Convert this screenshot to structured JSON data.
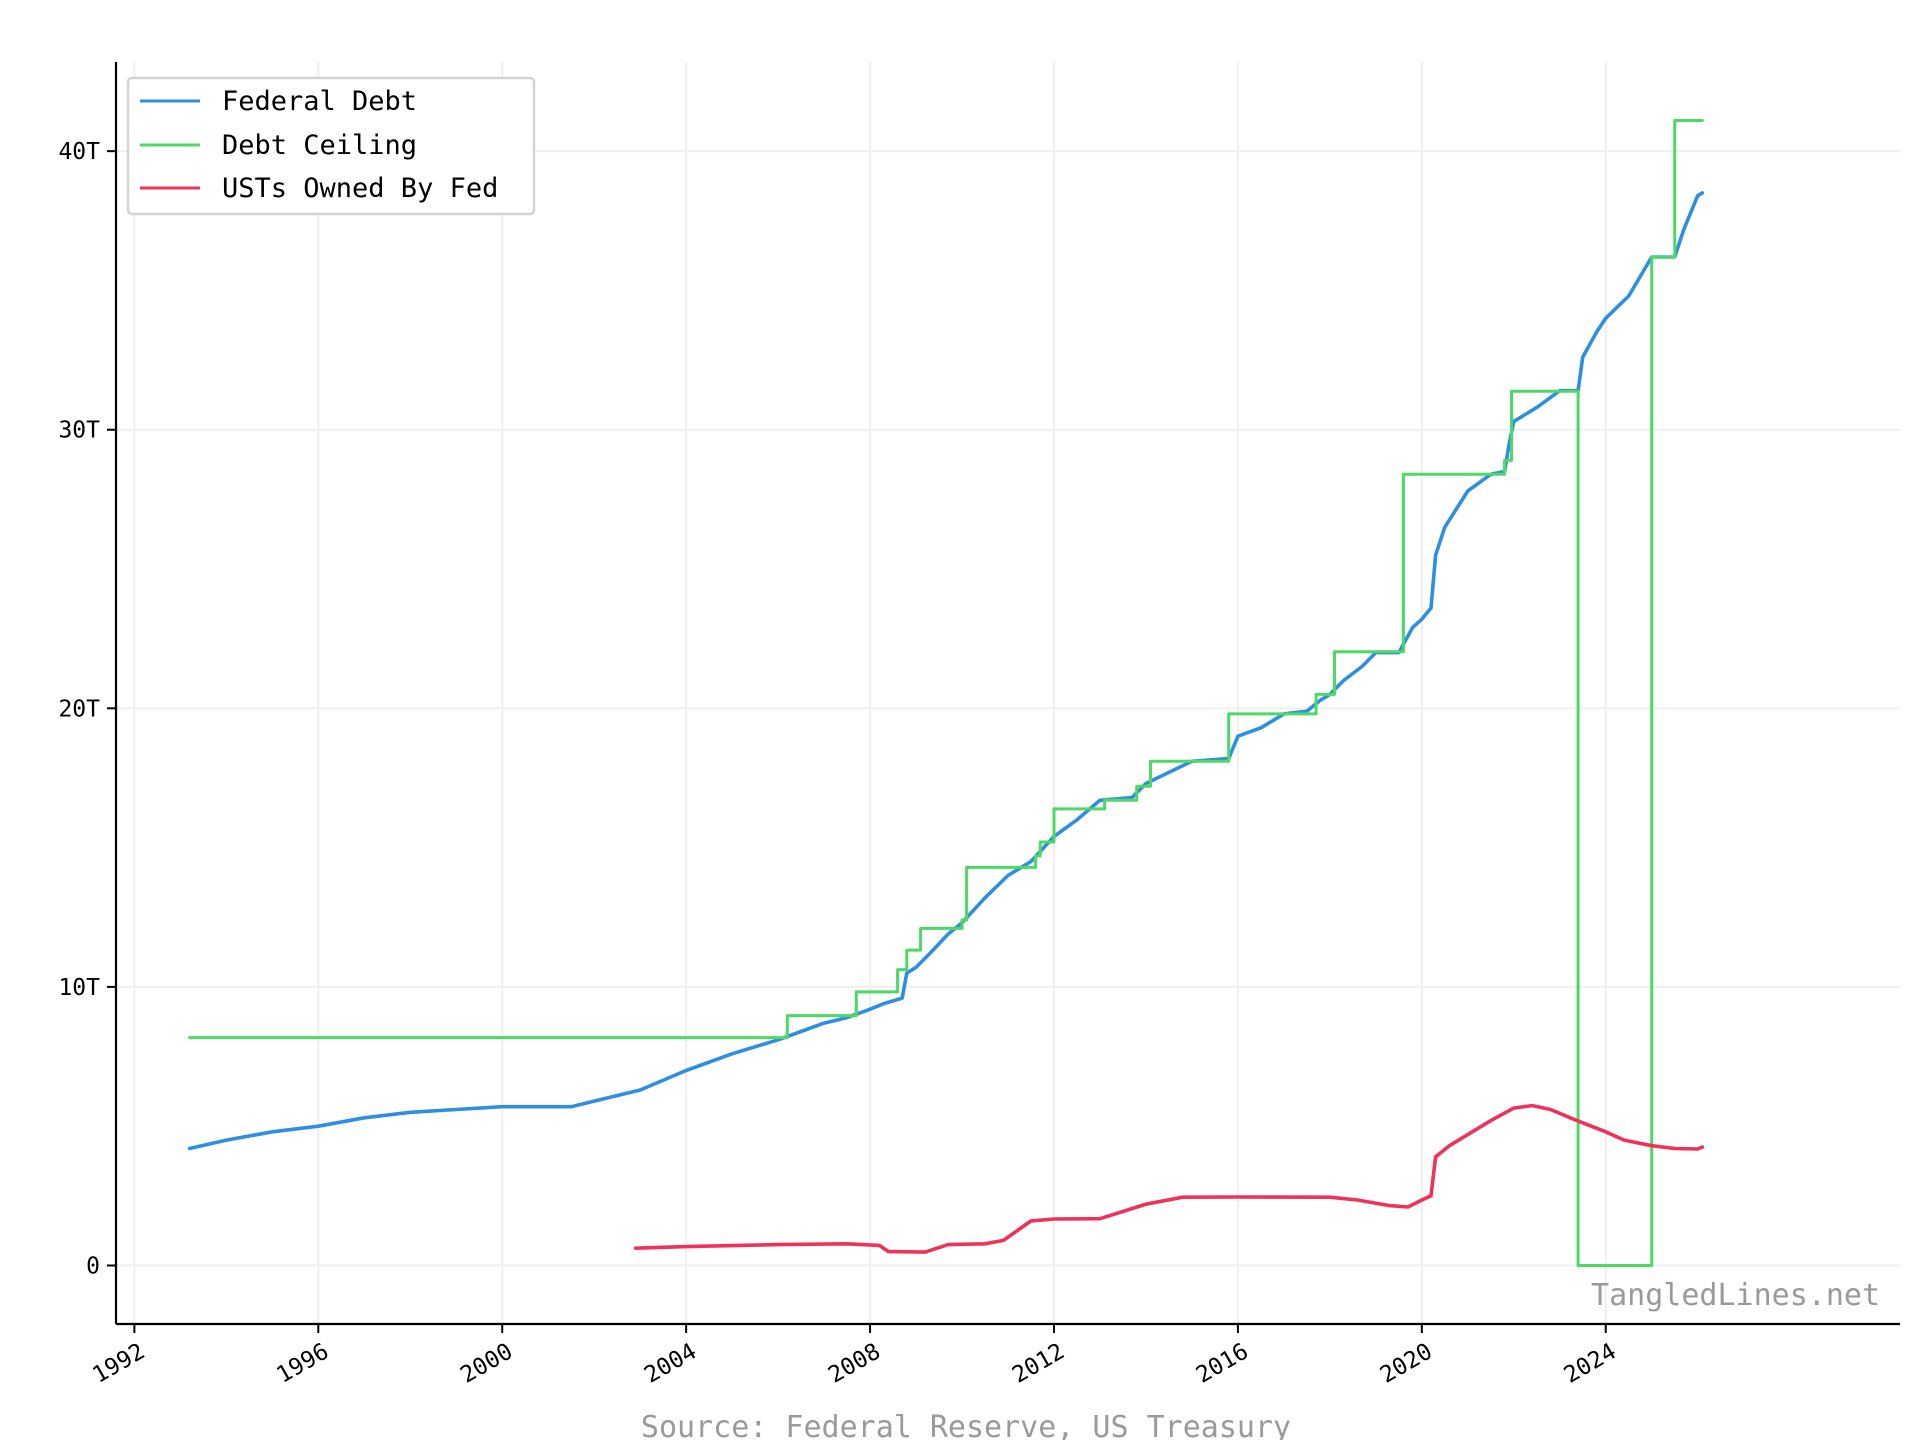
{
  "chart_data": {
    "type": "line",
    "xlim": [
      1991.6,
      2030.4
    ],
    "ylim": [
      -2.1,
      43.2
    ],
    "x_ticks": [
      1992,
      1996,
      2000,
      2004,
      2008,
      2012,
      2016,
      2020,
      2024
    ],
    "x_tick_labels": [
      "1992",
      "1996",
      "2000",
      "2004",
      "2008",
      "2012",
      "2016",
      "2020",
      "2024"
    ],
    "y_ticks": [
      0,
      10,
      20,
      30,
      40
    ],
    "y_tick_labels": [
      "0",
      "10T",
      "20T",
      "30T",
      "40T"
    ],
    "grid": true,
    "legend_position": "top-left",
    "watermark": "TangledLines.net",
    "source": "Source: Federal Reserve, US Treasury",
    "series": [
      {
        "name": "Federal Debt",
        "color": "#2e8fe0",
        "style": "line",
        "points": [
          [
            1993.2,
            4.2
          ],
          [
            1994.0,
            4.5
          ],
          [
            1995.0,
            4.8
          ],
          [
            1996.0,
            5.0
          ],
          [
            1997.0,
            5.3
          ],
          [
            1998.0,
            5.5
          ],
          [
            1999.0,
            5.6
          ],
          [
            2000.0,
            5.7
          ],
          [
            2001.0,
            5.7
          ],
          [
            2001.5,
            5.7
          ],
          [
            2002.0,
            5.9
          ],
          [
            2003.0,
            6.3
          ],
          [
            2004.0,
            7.0
          ],
          [
            2005.0,
            7.6
          ],
          [
            2006.0,
            8.1
          ],
          [
            2006.5,
            8.4
          ],
          [
            2007.0,
            8.7
          ],
          [
            2007.5,
            8.9
          ],
          [
            2008.0,
            9.2
          ],
          [
            2008.3,
            9.4
          ],
          [
            2008.7,
            9.6
          ],
          [
            2008.8,
            10.5
          ],
          [
            2009.0,
            10.7
          ],
          [
            2009.3,
            11.2
          ],
          [
            2009.7,
            11.9
          ],
          [
            2010.0,
            12.3
          ],
          [
            2010.5,
            13.2
          ],
          [
            2011.0,
            14.0
          ],
          [
            2011.5,
            14.5
          ],
          [
            2012.0,
            15.4
          ],
          [
            2012.5,
            16.0
          ],
          [
            2013.0,
            16.7
          ],
          [
            2013.7,
            16.8
          ],
          [
            2014.0,
            17.3
          ],
          [
            2014.5,
            17.7
          ],
          [
            2015.0,
            18.1
          ],
          [
            2015.8,
            18.2
          ],
          [
            2016.0,
            19.0
          ],
          [
            2016.5,
            19.3
          ],
          [
            2017.0,
            19.8
          ],
          [
            2017.5,
            19.9
          ],
          [
            2017.8,
            20.3
          ],
          [
            2018.0,
            20.5
          ],
          [
            2018.3,
            21.0
          ],
          [
            2018.7,
            21.5
          ],
          [
            2019.0,
            22.0
          ],
          [
            2019.5,
            22.0
          ],
          [
            2019.8,
            22.9
          ],
          [
            2020.0,
            23.2
          ],
          [
            2020.2,
            23.6
          ],
          [
            2020.3,
            25.5
          ],
          [
            2020.5,
            26.5
          ],
          [
            2021.0,
            27.8
          ],
          [
            2021.5,
            28.4
          ],
          [
            2021.8,
            28.5
          ],
          [
            2021.9,
            29.5
          ],
          [
            2022.0,
            30.3
          ],
          [
            2022.5,
            30.8
          ],
          [
            2023.0,
            31.4
          ],
          [
            2023.4,
            31.4
          ],
          [
            2023.5,
            32.6
          ],
          [
            2023.8,
            33.5
          ],
          [
            2024.0,
            34.0
          ],
          [
            2024.5,
            34.8
          ],
          [
            2025.0,
            36.2
          ],
          [
            2025.5,
            36.2
          ],
          [
            2025.7,
            37.2
          ],
          [
            2026.0,
            38.4
          ],
          [
            2026.1,
            38.5
          ]
        ]
      },
      {
        "name": "Debt Ceiling",
        "color": "#4cd964",
        "style": "step",
        "points": [
          [
            1993.2,
            8.18
          ],
          [
            2006.2,
            8.18
          ],
          [
            2006.2,
            8.97
          ],
          [
            2007.7,
            8.97
          ],
          [
            2007.7,
            9.82
          ],
          [
            2008.6,
            9.82
          ],
          [
            2008.6,
            10.62
          ],
          [
            2008.8,
            10.62
          ],
          [
            2008.8,
            11.32
          ],
          [
            2009.1,
            11.32
          ],
          [
            2009.1,
            12.1
          ],
          [
            2010.0,
            12.1
          ],
          [
            2010.0,
            12.4
          ],
          [
            2010.1,
            12.4
          ],
          [
            2010.1,
            14.29
          ],
          [
            2011.6,
            14.29
          ],
          [
            2011.6,
            14.7
          ],
          [
            2011.7,
            14.7
          ],
          [
            2011.7,
            15.2
          ],
          [
            2012.0,
            15.2
          ],
          [
            2012.0,
            16.39
          ],
          [
            2013.1,
            16.39
          ],
          [
            2013.1,
            16.7
          ],
          [
            2013.8,
            16.7
          ],
          [
            2013.8,
            17.2
          ],
          [
            2014.1,
            17.2
          ],
          [
            2014.1,
            18.1
          ],
          [
            2015.8,
            18.1
          ],
          [
            2015.8,
            19.8
          ],
          [
            2017.7,
            19.8
          ],
          [
            2017.7,
            20.5
          ],
          [
            2018.1,
            20.5
          ],
          [
            2018.1,
            22.03
          ],
          [
            2019.6,
            22.03
          ],
          [
            2019.6,
            28.4
          ],
          [
            2021.8,
            28.4
          ],
          [
            2021.8,
            28.9
          ],
          [
            2021.95,
            28.9
          ],
          [
            2021.95,
            31.38
          ],
          [
            2023.4,
            31.38
          ],
          [
            2023.4,
            0.0
          ],
          [
            2025.0,
            0.0
          ],
          [
            2025.0,
            36.2
          ],
          [
            2025.5,
            36.2
          ],
          [
            2025.5,
            41.1
          ],
          [
            2026.1,
            41.1
          ]
        ]
      },
      {
        "name": "USTs Owned By Fed",
        "color": "#f0325a",
        "style": "line",
        "points": [
          [
            2002.9,
            0.62
          ],
          [
            2004.0,
            0.68
          ],
          [
            2006.0,
            0.75
          ],
          [
            2007.5,
            0.78
          ],
          [
            2008.2,
            0.72
          ],
          [
            2008.4,
            0.5
          ],
          [
            2009.2,
            0.48
          ],
          [
            2009.7,
            0.75
          ],
          [
            2010.5,
            0.78
          ],
          [
            2010.9,
            0.9
          ],
          [
            2011.5,
            1.6
          ],
          [
            2012.0,
            1.67
          ],
          [
            2013.0,
            1.68
          ],
          [
            2014.0,
            2.2
          ],
          [
            2014.8,
            2.45
          ],
          [
            2016.0,
            2.46
          ],
          [
            2018.0,
            2.45
          ],
          [
            2018.6,
            2.35
          ],
          [
            2019.3,
            2.15
          ],
          [
            2019.7,
            2.1
          ],
          [
            2020.0,
            2.35
          ],
          [
            2020.2,
            2.5
          ],
          [
            2020.3,
            3.9
          ],
          [
            2020.6,
            4.3
          ],
          [
            2021.0,
            4.7
          ],
          [
            2021.5,
            5.2
          ],
          [
            2022.0,
            5.65
          ],
          [
            2022.4,
            5.74
          ],
          [
            2022.8,
            5.6
          ],
          [
            2023.3,
            5.25
          ],
          [
            2024.0,
            4.8
          ],
          [
            2024.4,
            4.5
          ],
          [
            2025.0,
            4.3
          ],
          [
            2025.5,
            4.2
          ],
          [
            2026.0,
            4.18
          ],
          [
            2026.1,
            4.25
          ]
        ]
      }
    ]
  }
}
